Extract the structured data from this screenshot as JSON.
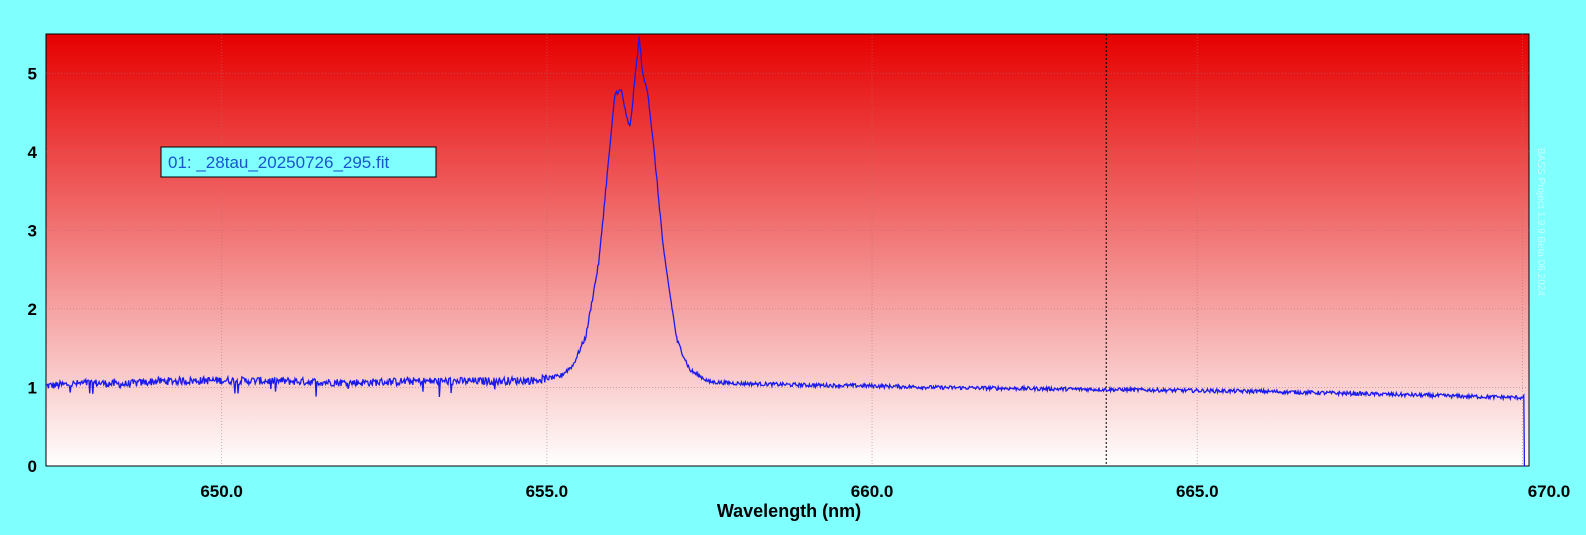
{
  "chart_data": {
    "type": "line",
    "title": "",
    "xlabel": "Wavelength (nm)",
    "ylabel": "",
    "xlim": [
      647.3,
      670.1
    ],
    "ylim": [
      0,
      5.5
    ],
    "x_ticks": [
      650.0,
      655.0,
      660.0,
      665.0,
      670.0
    ],
    "x_tick_labels": [
      "650.0",
      "655.0",
      "660.0",
      "665.0",
      "670.0"
    ],
    "y_ticks": [
      0,
      1,
      2,
      3,
      4,
      5
    ],
    "y_tick_labels": [
      "0",
      "1",
      "2",
      "3",
      "4",
      "5"
    ],
    "grid": true,
    "legend_position": "top-left",
    "cursor_x": 663.6,
    "series": [
      {
        "name": "01: _28tau_20250726_295.fit",
        "color": "#1a1aee",
        "points": [
          [
            647.3,
            1.02
          ],
          [
            648.0,
            1.06
          ],
          [
            648.5,
            1.04
          ],
          [
            649.0,
            1.08
          ],
          [
            650.0,
            1.09
          ],
          [
            651.0,
            1.08
          ],
          [
            652.0,
            1.06
          ],
          [
            653.0,
            1.08
          ],
          [
            654.0,
            1.08
          ],
          [
            654.8,
            1.09
          ],
          [
            655.2,
            1.14
          ],
          [
            655.4,
            1.28
          ],
          [
            655.6,
            1.65
          ],
          [
            655.8,
            2.6
          ],
          [
            655.95,
            3.9
          ],
          [
            656.05,
            4.75
          ],
          [
            656.15,
            4.78
          ],
          [
            656.22,
            4.45
          ],
          [
            656.28,
            4.3
          ],
          [
            656.35,
            4.9
          ],
          [
            656.42,
            5.45
          ],
          [
            656.48,
            4.95
          ],
          [
            656.55,
            4.78
          ],
          [
            656.65,
            4.0
          ],
          [
            656.8,
            2.7
          ],
          [
            657.0,
            1.6
          ],
          [
            657.2,
            1.22
          ],
          [
            657.5,
            1.07
          ],
          [
            658.0,
            1.05
          ],
          [
            659.0,
            1.03
          ],
          [
            660.0,
            1.02
          ],
          [
            661.0,
            1.0
          ],
          [
            662.0,
            0.99
          ],
          [
            663.0,
            0.98
          ],
          [
            664.0,
            0.97
          ],
          [
            665.0,
            0.96
          ],
          [
            666.0,
            0.95
          ],
          [
            667.0,
            0.93
          ],
          [
            668.0,
            0.91
          ],
          [
            669.0,
            0.89
          ],
          [
            670.0,
            0.87
          ]
        ]
      }
    ],
    "watermark": "BASS Project 1.9.9 Beta 06.2024"
  },
  "colors": {
    "background": "#80ffff",
    "plot_top": "#e60000",
    "plot_bottom": "#ffffff",
    "line": "#1a1aee",
    "legend_bg": "#80ffff"
  }
}
